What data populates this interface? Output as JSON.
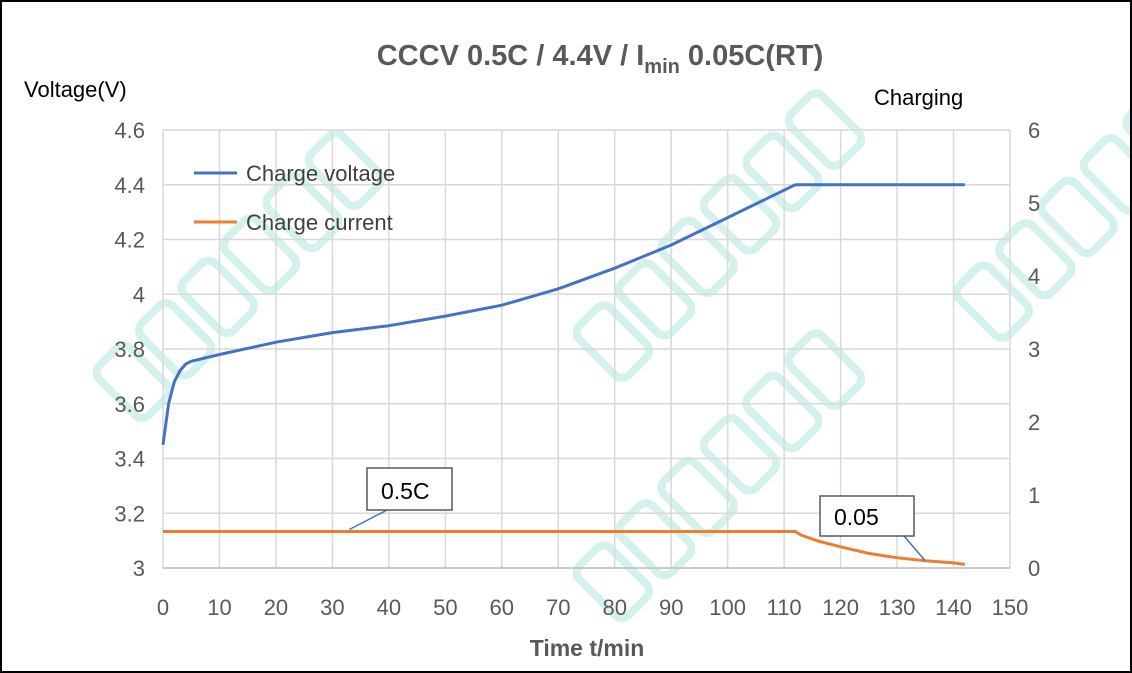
{
  "chart_data": {
    "type": "line",
    "title": {
      "prefix": "CCCV 0.5C  / 4.4V  /  I",
      "sub": "min",
      "suffix": " 0.05C(RT)"
    },
    "xlabel": "Time t/min",
    "ylabel": "Voltage(V)",
    "y2label": "Charging",
    "xlim": [
      0,
      150
    ],
    "ylim": [
      3,
      4.6
    ],
    "y2lim": [
      0,
      6
    ],
    "xticks": [
      "0",
      "10",
      "20",
      "30",
      "40",
      "50",
      "60",
      "70",
      "80",
      "90",
      "100",
      "110",
      "120",
      "130",
      "140",
      "150"
    ],
    "yticks": [
      "3",
      "3.2",
      "3.4",
      "3.6",
      "3.8",
      "4",
      "4.2",
      "4.4",
      "4.6"
    ],
    "y2ticks": [
      "0",
      "1",
      "2",
      "3",
      "4",
      "5",
      "6"
    ],
    "grid": true,
    "legend_position": "top-left",
    "series": [
      {
        "name": "Charge voltage",
        "axis": "left",
        "color": "#4472c4",
        "x": [
          0,
          1,
          2,
          3,
          4,
          5,
          10,
          20,
          30,
          40,
          50,
          60,
          70,
          80,
          90,
          100,
          110,
          112,
          142
        ],
        "y": [
          3.45,
          3.6,
          3.68,
          3.72,
          3.745,
          3.755,
          3.78,
          3.825,
          3.86,
          3.885,
          3.92,
          3.96,
          4.02,
          4.095,
          4.18,
          4.28,
          4.38,
          4.4,
          4.4
        ]
      },
      {
        "name": "Charge current",
        "axis": "right",
        "color": "#ed7d31",
        "x": [
          0,
          112,
          113,
          116,
          120,
          125,
          130,
          135,
          140,
          142
        ],
        "y": [
          0.5,
          0.5,
          0.45,
          0.37,
          0.29,
          0.2,
          0.14,
          0.1,
          0.07,
          0.05
        ]
      }
    ],
    "annotations": [
      {
        "text": "0.5C",
        "x": 33,
        "y": 0.5
      },
      {
        "text": "0.05",
        "x": 135,
        "y": 0.07
      }
    ]
  },
  "watermark": "GREPOW RECHARGEABLE BATTERY"
}
